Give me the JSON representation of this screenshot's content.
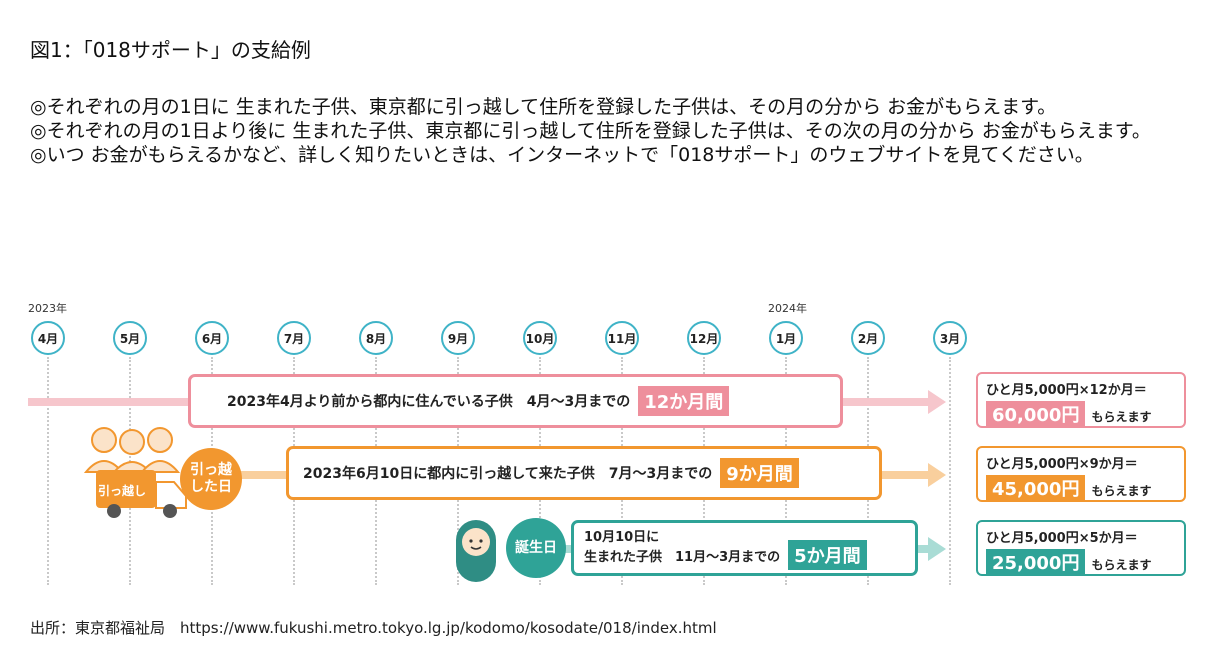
{
  "title": "図1：「018サポート」の支給例",
  "description": [
    "◎それぞれの月の1日に 生まれた子供、東京都に引っ越して住所を登録した子供は、その月の分から お金がもらえます。",
    "◎それぞれの月の1日より後に 生まれた子供、東京都に引っ越して住所を登録した子供は、その次の月の分から お金がもらえます。",
    "◎いつ お金がもらえるかなど、詳しく知りたいときは、インターネットで「018サポート」のウェブサイトを見てください。"
  ],
  "timeline": {
    "year_start": "2023年",
    "year_end": "2024年",
    "months": [
      "4月",
      "5月",
      "6月",
      "7月",
      "8月",
      "9月",
      "10月",
      "11月",
      "12月",
      "1月",
      "2月",
      "3月"
    ]
  },
  "rows": [
    {
      "text": "2023年4月より前から都内に住んでいる子供　4月～3月までの",
      "highlight": "12か月間",
      "calc": "ひと月5,000円×12か月＝",
      "amount": "60,000円",
      "amount_suffix": "もらえます",
      "color": "#ee8f9c",
      "track_color": "#f6c6cc"
    },
    {
      "badge": "引っ越した日",
      "truck_label": "引っ越し",
      "text": "2023年6月10日に都内に引っ越して来た子供　7月～3月までの",
      "highlight": "9か月間",
      "calc": "ひと月5,000円×9か月＝",
      "amount": "45,000円",
      "amount_suffix": "もらえます",
      "color": "#f2972f",
      "track_color": "#f9cf9d"
    },
    {
      "badge": "誕生日",
      "text_line1": "10月10日に",
      "text_line2": "生まれた子供　11月～3月までの",
      "highlight": "5か月間",
      "calc": "ひと月5,000円×5か月＝",
      "amount": "25,000円",
      "amount_suffix": "もらえます",
      "color": "#2fa397",
      "track_color": "#a9dcd5"
    }
  ],
  "source": "出所：東京都福祉局　https://www.fukushi.metro.tokyo.lg.jp/kodomo/kosodate/018/index.html"
}
